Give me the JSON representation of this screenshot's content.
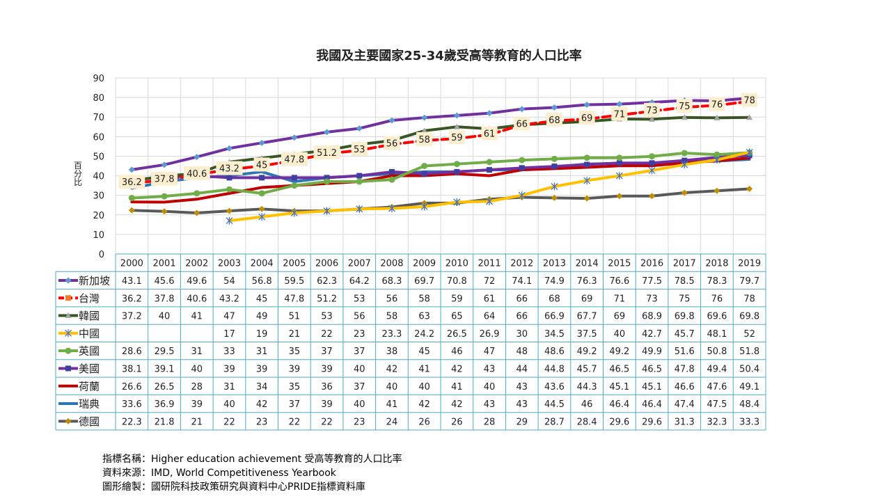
{
  "chart_data": {
    "type": "line",
    "title": "我國及主要國家25-34歲受高等教育的人口比率",
    "ylabel": "百分比",
    "xlabel": "",
    "ylim": [
      0,
      90
    ],
    "yticks": [
      0,
      10,
      20,
      30,
      40,
      50,
      60,
      70,
      80,
      90
    ],
    "grid": true,
    "legend": "data-table",
    "categories": [
      "2000",
      "2001",
      "2002",
      "2003",
      "2004",
      "2005",
      "2006",
      "2007",
      "2008",
      "2009",
      "2010",
      "2011",
      "2012",
      "2013",
      "2014",
      "2015",
      "2016",
      "2017",
      "2018",
      "2019"
    ],
    "labeled_series": "台灣",
    "label_fill": "#fcefcf",
    "series": [
      {
        "name": "新加坡",
        "color": "#7030a0",
        "marker": "diamond",
        "markerColor": "#5b9bd5",
        "dash": false,
        "values": [
          43.1,
          45.6,
          49.6,
          54,
          56.8,
          59.5,
          62.3,
          64.2,
          68.3,
          69.7,
          70.8,
          72,
          74.1,
          74.9,
          76.3,
          76.6,
          77.5,
          78.5,
          78.3,
          79.7
        ]
      },
      {
        "name": "台灣",
        "color": "#ff0000",
        "marker": "square",
        "markerColor": "#ed7d31",
        "dash": true,
        "values": [
          36.2,
          37.8,
          40.6,
          43.2,
          45,
          47.8,
          51.2,
          53,
          56,
          58,
          59,
          61,
          66,
          68,
          69,
          71,
          73,
          75,
          76,
          78
        ]
      },
      {
        "name": "韓國",
        "color": "#375623",
        "marker": "triangle",
        "markerColor": "#a5a5a5",
        "dash": false,
        "values": [
          37.2,
          40,
          41,
          47,
          49,
          51,
          53,
          56,
          58,
          63,
          65,
          64,
          66,
          66.9,
          67.7,
          69,
          68.9,
          69.8,
          69.6,
          69.8
        ]
      },
      {
        "name": "中國",
        "color": "#ffc000",
        "marker": "star",
        "markerColor": "#4472c4",
        "dash": false,
        "values": [
          null,
          null,
          null,
          17,
          19,
          21,
          22,
          23,
          23.3,
          24.2,
          26.5,
          26.9,
          30,
          34.5,
          37.5,
          40,
          42.7,
          45.7,
          48.1,
          52
        ]
      },
      {
        "name": "英國",
        "color": "#70ad47",
        "marker": "circle",
        "markerColor": "#70ad47",
        "dash": false,
        "values": [
          28.6,
          29.5,
          31,
          33,
          31,
          35,
          37,
          37,
          38,
          45,
          46,
          47,
          48,
          48.6,
          49.2,
          49.2,
          49.9,
          51.6,
          50.8,
          51.8
        ]
      },
      {
        "name": "美國",
        "color": "#7030a0",
        "marker": "square",
        "markerColor": "#3f3fa0",
        "dash": false,
        "values": [
          38.1,
          39.1,
          40,
          39,
          39,
          39,
          39,
          40,
          42,
          41,
          42,
          43,
          44,
          44.8,
          45.7,
          46.5,
          46.5,
          47.8,
          49.4,
          50.4
        ]
      },
      {
        "name": "荷蘭",
        "color": "#c00000",
        "marker": "none",
        "markerColor": "#c00000",
        "dash": false,
        "values": [
          26.6,
          26.5,
          28,
          31,
          34,
          35,
          36,
          37,
          40,
          40,
          41,
          40,
          43,
          43.6,
          44.3,
          45.1,
          45.1,
          46.6,
          47.6,
          49.1
        ]
      },
      {
        "name": "瑞典",
        "color": "#2e75b6",
        "marker": "none",
        "markerColor": "#2e75b6",
        "dash": false,
        "values": [
          33.6,
          36.9,
          39,
          40,
          42,
          37,
          39,
          40,
          41,
          42,
          42,
          43,
          43,
          44.5,
          46,
          46.4,
          46.4,
          47.4,
          47.5,
          48.4
        ]
      },
      {
        "name": "德國",
        "color": "#595959",
        "marker": "diamond",
        "markerColor": "#bf8f00",
        "dash": false,
        "values": [
          22.3,
          21.8,
          21,
          22,
          23,
          22,
          22,
          23,
          24,
          26,
          26,
          28,
          29,
          28.7,
          28.4,
          29.6,
          29.6,
          31.3,
          32.3,
          33.3
        ]
      }
    ],
    "table_values": {
      "新加坡": [
        "43.1",
        "45.6",
        "49.6",
        "54",
        "56.8",
        "59.5",
        "62.3",
        "64.2",
        "68.3",
        "69.7",
        "70.8",
        "72",
        "74.1",
        "74.9",
        "76.3",
        "76.6",
        "77.5",
        "78.5",
        "78.3",
        "79.7"
      ],
      "台灣": [
        "36.2",
        "37.8",
        "40.6",
        "43.2",
        "45",
        "47.8",
        "51.2",
        "53",
        "56",
        "58",
        "59",
        "61",
        "66",
        "68",
        "69",
        "71",
        "73",
        "75",
        "76",
        "78"
      ],
      "韓國": [
        "37.2",
        "40",
        "41",
        "47",
        "49",
        "51",
        "53",
        "56",
        "58",
        "63",
        "65",
        "64",
        "66",
        "66.9",
        "67.7",
        "69",
        "68.9",
        "69.8",
        "69.6",
        "69.8"
      ],
      "中國": [
        "",
        "",
        "",
        "17",
        "19",
        "21",
        "22",
        "23",
        "23.3",
        "24.2",
        "26.5",
        "26.9",
        "30",
        "34.5",
        "37.5",
        "40",
        "42.7",
        "45.7",
        "48.1",
        "52"
      ],
      "英國": [
        "28.6",
        "29.5",
        "31",
        "33",
        "31",
        "35",
        "37",
        "37",
        "38",
        "45",
        "46",
        "47",
        "48",
        "48.6",
        "49.2",
        "49.2",
        "49.9",
        "51.6",
        "50.8",
        "51.8"
      ],
      "美國": [
        "38.1",
        "39.1",
        "40",
        "39",
        "39",
        "39",
        "39",
        "40",
        "42",
        "41",
        "42",
        "43",
        "44",
        "44.8",
        "45.7",
        "46.5",
        "46.5",
        "47.8",
        "49.4",
        "50.4"
      ],
      "荷蘭": [
        "26.6",
        "26.5",
        "28",
        "31",
        "34",
        "35",
        "36",
        "37",
        "40",
        "40",
        "41",
        "40",
        "43",
        "43.6",
        "44.3",
        "45.1",
        "45.1",
        "46.6",
        "47.6",
        "49.1"
      ],
      "瑞典": [
        "33.6",
        "36.9",
        "39",
        "40",
        "42",
        "37",
        "39",
        "40",
        "41",
        "42",
        "42",
        "43",
        "43",
        "44.5",
        "46",
        "46.4",
        "46.4",
        "47.4",
        "47.5",
        "48.4"
      ],
      "德國": [
        "22.3",
        "21.8",
        "21",
        "22",
        "23",
        "22",
        "22",
        "23",
        "24",
        "26",
        "26",
        "28",
        "29",
        "28.7",
        "28.4",
        "29.6",
        "29.6",
        "31.3",
        "32.3",
        "33.3"
      ]
    }
  },
  "footnotes": {
    "indicator": "指標名稱：Higher education achievement 受高等教育的人口比率",
    "source": "資料來源：IMD, World Competitiveness Yearbook",
    "drawn_by": "圖形繪製：國研院科技政策研究與資料中心PRIDE指標資料庫"
  },
  "colors": {
    "grid": "#d9d9d9",
    "table_border": "#4bacc6",
    "label_fill": "#fcefcf"
  }
}
